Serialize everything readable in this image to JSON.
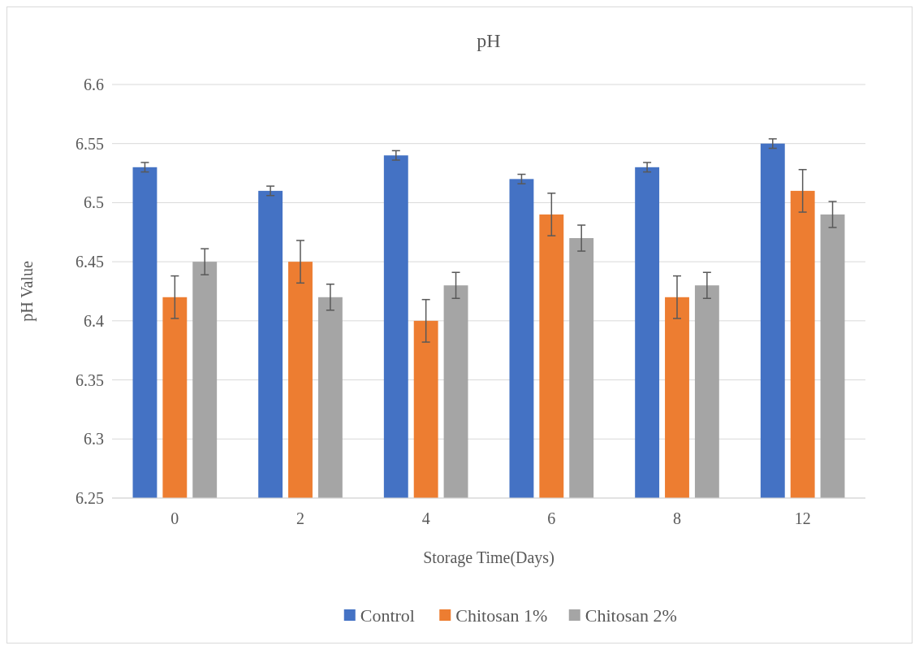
{
  "chart_data": {
    "type": "bar",
    "title": "pH",
    "xlabel": "Storage Time(Days)",
    "ylabel": "pH Value",
    "categories": [
      "0",
      "2",
      "4",
      "6",
      "8",
      "12"
    ],
    "series": [
      {
        "name": "Control",
        "color": "#4472c4",
        "values": [
          6.53,
          6.51,
          6.54,
          6.52,
          6.53,
          6.55
        ],
        "errors": [
          0.004,
          0.004,
          0.004,
          0.004,
          0.004,
          0.004
        ]
      },
      {
        "name": "Chitosan 1%",
        "color": "#ed7d31",
        "values": [
          6.42,
          6.45,
          6.4,
          6.49,
          6.42,
          6.51
        ],
        "errors": [
          0.018,
          0.018,
          0.018,
          0.018,
          0.018,
          0.018
        ]
      },
      {
        "name": "Chitosan 2%",
        "color": "#a5a5a5",
        "values": [
          6.45,
          6.42,
          6.43,
          6.47,
          6.43,
          6.49
        ],
        "errors": [
          0.011,
          0.011,
          0.011,
          0.011,
          0.011,
          0.011
        ]
      }
    ],
    "ylim": [
      6.25,
      6.6
    ],
    "yticks": [
      6.25,
      6.3,
      6.35,
      6.4,
      6.45,
      6.5,
      6.55,
      6.6
    ],
    "grid": "y",
    "legend": "bottom"
  }
}
